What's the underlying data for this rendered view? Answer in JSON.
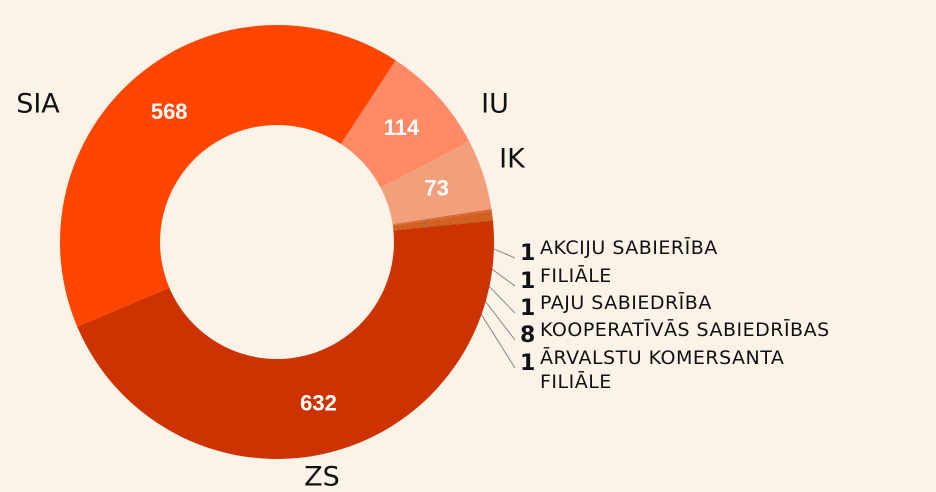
{
  "chart_data": {
    "type": "pie",
    "categories": [
      "SIA",
      "IU",
      "IK",
      "AKCIJU SABIERĪBA",
      "FILIĀLE",
      "PAJU SABIEDRĪBA",
      "KOOPERATĪVĀS SABIEDRĪBAS",
      "ĀRVALSTU KOMERSANTA FILIĀLE",
      "ZS"
    ],
    "values": [
      568,
      114,
      73,
      1,
      1,
      1,
      8,
      1,
      632
    ],
    "colors": [
      "#ff4500",
      "#ff8a65",
      "#f2a07c",
      "#d9541a",
      "#e0672a",
      "#c8501e",
      "#d2601f",
      "#b84a1a",
      "#cc3300"
    ]
  }
}
